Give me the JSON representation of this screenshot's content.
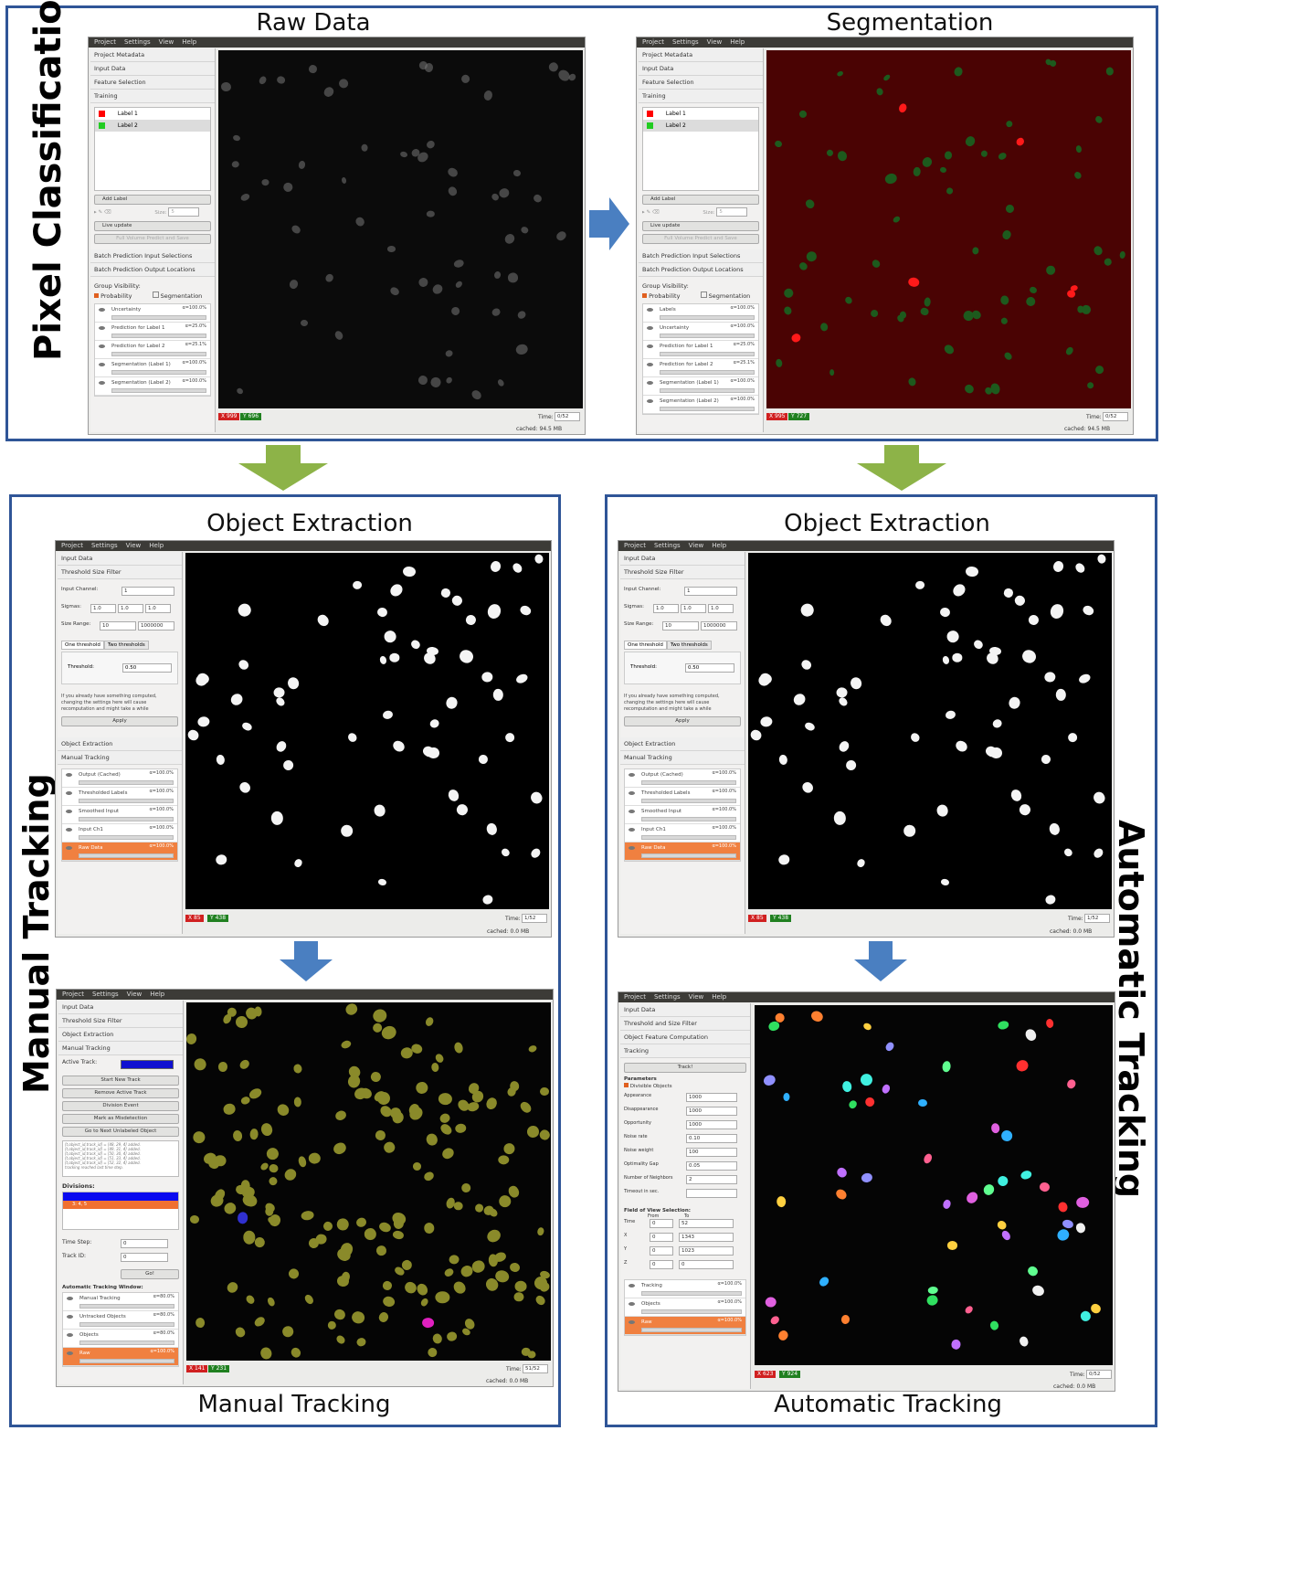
{
  "sections": {
    "pixel_classification": "Pixel Classification",
    "manual_tracking": "Manual Tracking",
    "automatic_tracking": "Automatic Tracking"
  },
  "titles": {
    "raw": "Raw Data",
    "seg": "Segmentation",
    "obj_left": "Object Extraction",
    "obj_right": "Object Extraction",
    "bottom_left": "Manual Tracking",
    "bottom_right": "Automatic Tracking"
  },
  "menu": [
    "Project",
    "Settings",
    "View",
    "Help"
  ],
  "pixel_panel": {
    "applets": [
      "Project Metadata",
      "Input Data",
      "Feature Selection",
      "Training"
    ],
    "labels": [
      "Label 1",
      "Label 2"
    ],
    "label_colors": [
      "#ff0000",
      "#22cc22"
    ],
    "add_label": "Add Label",
    "size": "Size:",
    "size_value": "5",
    "live_update": "Live update",
    "full_volume": "Full Volume Predict and Save",
    "batch_in": "Batch Prediction Input Selections",
    "batch_out": "Batch Prediction Output Locations",
    "group_vis": "Group Visibility:",
    "probability": "Probability",
    "segmentation": "Segmentation",
    "layers_raw": [
      {
        "name": "Uncertainty",
        "pct": "α=100.0%"
      },
      {
        "name": "Prediction for Label 1",
        "pct": "α=25.0%"
      },
      {
        "name": "Prediction for Label 2",
        "pct": "α=25.1%"
      },
      {
        "name": "Segmentation (Label 1)",
        "pct": "α=100.0%"
      },
      {
        "name": "Segmentation (Label 2)",
        "pct": "α=100.0%"
      }
    ],
    "layers_seg": [
      {
        "name": "Labels",
        "pct": "α=100.0%"
      },
      {
        "name": "Uncertainty",
        "pct": "α=100.0%"
      },
      {
        "name": "Prediction for Label 1",
        "pct": "α=25.0%"
      },
      {
        "name": "Prediction for Label 2",
        "pct": "α=25.1%"
      },
      {
        "name": "Segmentation (Label 1)",
        "pct": "α=100.0%"
      },
      {
        "name": "Segmentation (Label 2)",
        "pct": "α=100.0%"
      }
    ]
  },
  "status_raw": {
    "x": "999",
    "y": "696",
    "time_label": "Time:",
    "time": "0/52",
    "cached": "cached: 94.5 MB"
  },
  "status_seg": {
    "x": "995",
    "y": "727",
    "time_label": "Time:",
    "time": "0/52",
    "cached": "cached: 94.5 MB"
  },
  "obj_panel": {
    "applets_top": [
      "Input Data",
      "Threshold  Size Filter"
    ],
    "input_channel": "Input Channel:",
    "input_channel_value": "1",
    "sigmas": "Sigmas:",
    "sigma_values": [
      "1.0",
      "1.0",
      "1.0"
    ],
    "size_range": "Size Range:",
    "size_min": "10",
    "size_max": "1000000",
    "one_threshold": "One threshold",
    "two_thresholds": "Two thresholds",
    "threshold": "Threshold:",
    "threshold_value": "0.50",
    "note": "If you already have something computed, changing the settings here will cause recomputation and might take a while",
    "apply": "Apply",
    "applets_bottom": [
      "Object Extraction",
      "Manual Tracking"
    ],
    "layers": [
      {
        "name": "Output (Cached)",
        "pct": "α=100.0%"
      },
      {
        "name": "Thresholded Labels",
        "pct": "α=100.0%"
      },
      {
        "name": "Smoothed Input",
        "pct": "α=100.0%"
      },
      {
        "name": "Input Ch1",
        "pct": "α=100.0%"
      },
      {
        "name": "Raw Data",
        "pct": "α=100.0%"
      }
    ]
  },
  "status_obj": {
    "x": "85",
    "y": "438",
    "time_label": "Time:",
    "time": "1/52",
    "cached": "cached: 0.0 MB"
  },
  "manual_panel": {
    "applets": [
      "Input Data",
      "Threshold  Size Filter",
      "Object Extraction",
      "Manual Tracking"
    ],
    "active_track": "Active Track:",
    "buttons": [
      "Start New Track",
      "Remove Active Track",
      "Division Event",
      "Mark as Misdetection",
      "Go to Next Unlabeled Object"
    ],
    "log": [
      "[t,object_id,track_id] = [48, 29, 4] added.",
      "[t,object_id,track_id] = [49, 31, 4] added.",
      "[t,object_id,track_id] = [50, 30, 4] added.",
      "[t,object_id,track_id] = [51, 33, 4] added.",
      "[t,object_id,track_id] = [52, 32, 4] added.",
      "tracking reached last time step."
    ],
    "divisions": "Divisions:",
    "division_rows": [
      "",
      "3: 4, 5"
    ],
    "time_step": "Time Step:",
    "time_step_value": "0",
    "track_id": "Track ID:",
    "track_id_value": "0",
    "go": "Go!",
    "window": "Automatic Tracking Window:",
    "layers": [
      {
        "name": "Manual Tracking",
        "pct": "α=80.0%"
      },
      {
        "name": "Untracked Objects",
        "pct": "α=80.0%"
      },
      {
        "name": "Objects",
        "pct": "α=80.0%"
      },
      {
        "name": "Raw",
        "pct": "α=100.0%"
      }
    ]
  },
  "status_manual": {
    "x": "141",
    "y": "231",
    "time_label": "Time:",
    "time": "51/52",
    "cached": "cached: 0.0 MB"
  },
  "auto_panel": {
    "applets": [
      "Input Data",
      "Threshold and Size Filter",
      "Object Feature Computation",
      "Tracking"
    ],
    "track": "Track!",
    "parameters": "Parameters",
    "divisible": "Divisible Objects",
    "params": [
      {
        "name": "Appearance",
        "value": "1000"
      },
      {
        "name": "Disappearance",
        "value": "1000"
      },
      {
        "name": "Opportunity",
        "value": "1000"
      },
      {
        "name": "Noise rate",
        "value": "0.10"
      },
      {
        "name": "Noise weight",
        "value": "100"
      },
      {
        "name": "Optimality Gap",
        "value": "0.05"
      },
      {
        "name": "Number of Neighbors",
        "value": "2"
      },
      {
        "name": "Timeout in sec.",
        "value": ""
      }
    ],
    "fov": "Field of View Selection:",
    "from": "From",
    "to": "To",
    "fov_rows": [
      {
        "axis": "Time",
        "from": "0",
        "to": "52"
      },
      {
        "axis": "X",
        "from": "0",
        "to": "1343"
      },
      {
        "axis": "Y",
        "from": "0",
        "to": "1023"
      },
      {
        "axis": "Z",
        "from": "0",
        "to": "0"
      }
    ],
    "layers": [
      {
        "name": "Tracking",
        "pct": "α=100.0%"
      },
      {
        "name": "Objects",
        "pct": "α=100.0%"
      },
      {
        "name": "Raw",
        "pct": "α=100.0%"
      }
    ]
  },
  "status_auto": {
    "x": "623",
    "y": "924",
    "time_label": "Time:",
    "time": "0/52",
    "cached": "cached: 0.0 MB"
  }
}
